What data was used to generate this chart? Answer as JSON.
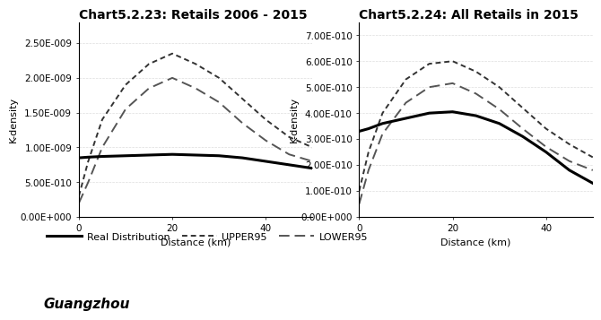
{
  "chart1_title": "Chart5.2.23: Retails 2006 - 2015",
  "chart2_title": "Chart5.2.24: All Retails in 2015",
  "xlabel": "Distance (km)",
  "ylabel": "K-density",
  "footer_text": "Guangzhou",
  "chart1": {
    "xlim": [
      0,
      50
    ],
    "ylim": [
      0,
      2.8e-09
    ],
    "yticks": [
      0,
      5e-10,
      1e-09,
      1.5e-09,
      2e-09,
      2.5e-09
    ],
    "ytick_labels": [
      "0.00E+000",
      "5.00E-010",
      "1.00E-009",
      "1.50E-009",
      "2.00E-009",
      "2.50E-009"
    ],
    "xticks": [
      0,
      20,
      40
    ],
    "real_x": [
      0,
      2,
      5,
      10,
      15,
      20,
      25,
      30,
      35,
      40,
      45,
      50
    ],
    "real_y": [
      8.5e-10,
      8.6e-10,
      8.7e-10,
      8.8e-10,
      8.9e-10,
      9e-10,
      8.9e-10,
      8.8e-10,
      8.5e-10,
      8e-10,
      7.5e-10,
      7e-10
    ],
    "upper_x": [
      0,
      2,
      5,
      10,
      15,
      20,
      25,
      30,
      35,
      40,
      45,
      50
    ],
    "upper_y": [
      3e-10,
      8e-10,
      1.4e-09,
      1.9e-09,
      2.2e-09,
      2.35e-09,
      2.2e-09,
      2e-09,
      1.7e-09,
      1.4e-09,
      1.15e-09,
      1e-09
    ],
    "lower_x": [
      0,
      2,
      5,
      10,
      15,
      20,
      25,
      30,
      35,
      40,
      45,
      50
    ],
    "lower_y": [
      2e-10,
      5e-10,
      1e-09,
      1.55e-09,
      1.85e-09,
      2e-09,
      1.85e-09,
      1.65e-09,
      1.35e-09,
      1.1e-09,
      9e-10,
      8e-10
    ]
  },
  "chart2": {
    "xlim": [
      0,
      50
    ],
    "ylim": [
      0,
      7.5e-10
    ],
    "yticks": [
      0,
      1e-10,
      2e-10,
      3e-10,
      4e-10,
      5e-10,
      6e-10,
      7e-10
    ],
    "ytick_labels": [
      "0.00E+000",
      "1.00E-010",
      "2.00E-010",
      "3.00E-010",
      "4.00E-010",
      "5.00E-010",
      "6.00E-010",
      "7.00E-010"
    ],
    "xticks": [
      0,
      20,
      40
    ],
    "real_x": [
      0,
      2,
      5,
      10,
      15,
      20,
      25,
      30,
      35,
      40,
      45,
      50
    ],
    "real_y": [
      3.3e-10,
      3.4e-10,
      3.6e-10,
      3.8e-10,
      4e-10,
      4.05e-10,
      3.9e-10,
      3.6e-10,
      3.1e-10,
      2.5e-10,
      1.8e-10,
      1.3e-10
    ],
    "upper_x": [
      0,
      2,
      5,
      10,
      15,
      20,
      25,
      30,
      35,
      40,
      45,
      50
    ],
    "upper_y": [
      1e-10,
      2.5e-10,
      4e-10,
      5.3e-10,
      5.9e-10,
      6e-10,
      5.6e-10,
      5e-10,
      4.2e-10,
      3.4e-10,
      2.8e-10,
      2.3e-10
    ],
    "lower_x": [
      0,
      2,
      5,
      10,
      15,
      20,
      25,
      30,
      35,
      40,
      45,
      50
    ],
    "lower_y": [
      5e-11,
      1.8e-10,
      3.2e-10,
      4.4e-10,
      5e-10,
      5.15e-10,
      4.75e-10,
      4.15e-10,
      3.4e-10,
      2.7e-10,
      2.15e-10,
      1.8e-10
    ]
  },
  "real_color": "#000000",
  "upper_color": "#333333",
  "lower_color": "#555555",
  "real_lw": 2.2,
  "upper_lw": 1.4,
  "lower_lw": 1.4,
  "legend_labels": [
    "Real Distribution",
    "UPPER95",
    "LOWER95"
  ],
  "title_fontsize": 10,
  "label_fontsize": 8,
  "tick_fontsize": 7.5,
  "footer_fontsize": 11
}
